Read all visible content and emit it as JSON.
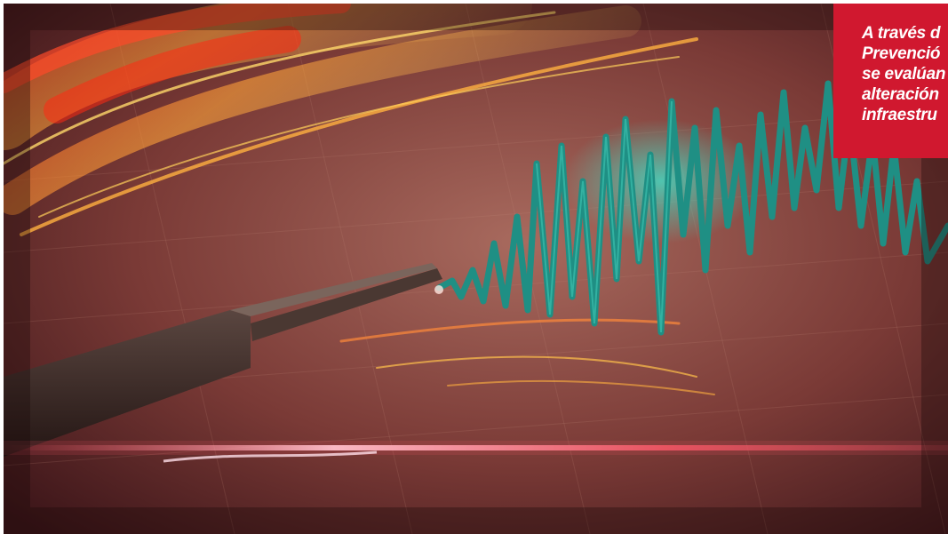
{
  "photo": {
    "subject": "seismograph-illustration",
    "colors": {
      "paper": "#7a3a36",
      "paper_light": "#a86a5e",
      "flame_red": "#ff3a1e",
      "flame_orange": "#ffa43a",
      "flame_yellow": "#ffd86a",
      "wave_teal": "#1f8f84",
      "wave_glow": "#3fe0c8",
      "needle": "#3a2a26",
      "glow_line": "#ffd2dc"
    }
  },
  "caption": {
    "background": "#d0182f",
    "lines": [
      "A través d",
      "Prevenció",
      "se evalúan",
      "alteración",
      "infraestru"
    ]
  }
}
